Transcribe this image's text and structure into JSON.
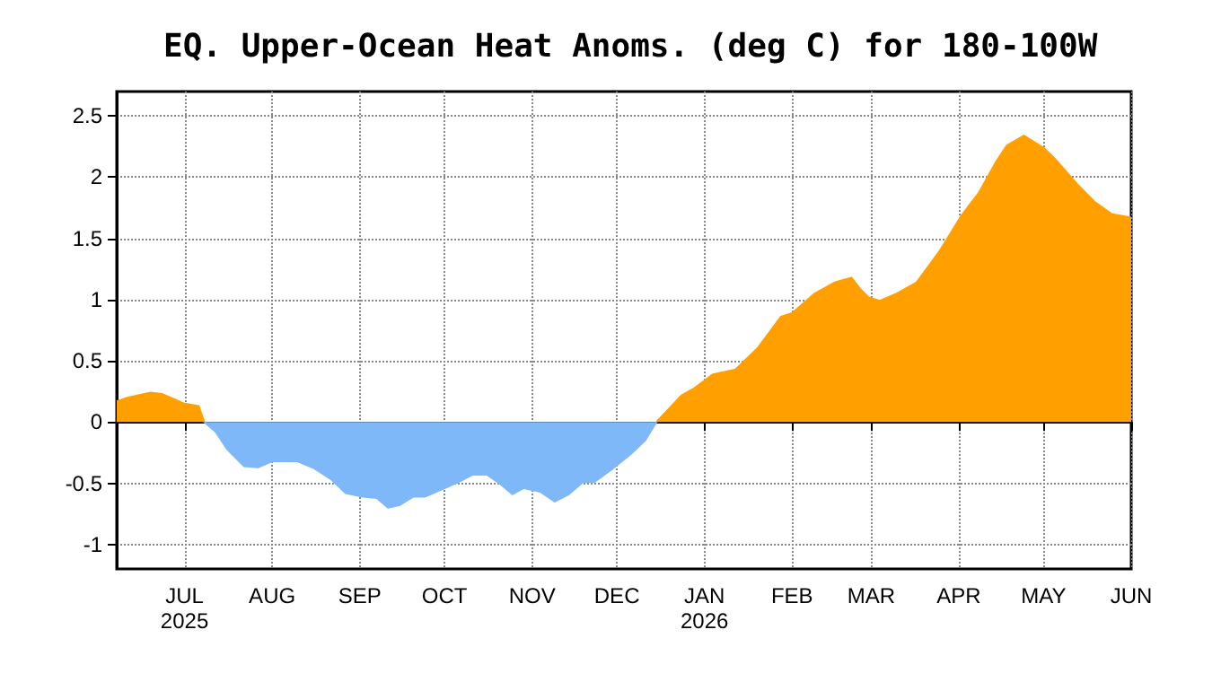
{
  "chart_data": {
    "type": "area",
    "title": "EQ. Upper-Ocean Heat Anoms. (deg C) for 180-100W",
    "x": [
      "2025-06-07",
      "2025-06-11",
      "2025-06-19",
      "2025-06-23",
      "2025-07-01",
      "2025-07-06",
      "2025-07-08",
      "2025-07-12",
      "2025-07-16",
      "2025-07-22",
      "2025-07-27",
      "2025-08-01",
      "2025-08-10",
      "2025-08-16",
      "2025-08-22",
      "2025-08-27",
      "2025-09-02",
      "2025-09-07",
      "2025-09-11",
      "2025-09-15",
      "2025-09-20",
      "2025-09-24",
      "2025-10-01",
      "2025-10-06",
      "2025-10-11",
      "2025-10-16",
      "2025-10-21",
      "2025-10-25",
      "2025-10-29",
      "2025-11-04",
      "2025-11-09",
      "2025-11-14",
      "2025-11-19",
      "2025-11-23",
      "2025-11-29",
      "2025-12-06",
      "2025-12-11",
      "2025-12-15",
      "2025-12-24",
      "2025-12-28",
      "2026-01-04",
      "2026-01-12",
      "2026-01-20",
      "2026-01-28",
      "2026-02-01",
      "2026-02-09",
      "2026-02-16",
      "2026-02-22",
      "2026-02-25",
      "2026-02-28",
      "2026-03-04",
      "2026-03-10",
      "2026-03-17",
      "2026-03-25",
      "2026-04-02",
      "2026-04-08",
      "2026-04-14",
      "2026-04-18",
      "2026-04-24",
      "2026-05-01",
      "2026-05-05",
      "2026-05-13",
      "2026-05-19",
      "2026-05-25",
      "2026-06-01"
    ],
    "series": [
      {
        "color": "#ffa000",
        "values": [
          0.17,
          0.2,
          0.24,
          0.23,
          0.15,
          0.13,
          0,
          null,
          null,
          null,
          null,
          null,
          null,
          null,
          null,
          null,
          null,
          null,
          null,
          null,
          null,
          null,
          null,
          null,
          null,
          null,
          null,
          null,
          null,
          null,
          null,
          null,
          null,
          null,
          null,
          null,
          null,
          0,
          0.22,
          0.27,
          0.39,
          0.43,
          0.61,
          0.86,
          0.89,
          1.05,
          1.14,
          1.18,
          1.09,
          1.02,
          0.99,
          1.05,
          1.14,
          1.39,
          1.69,
          1.87,
          2.12,
          2.26,
          2.34,
          2.24,
          2.15,
          1.94,
          1.8,
          1.7,
          1.67
        ]
      },
      {
        "color": "#7fb8f8",
        "values": [
          null,
          null,
          null,
          null,
          null,
          null,
          0,
          -0.08,
          -0.22,
          -0.36,
          -0.37,
          -0.32,
          -0.32,
          -0.38,
          -0.47,
          -0.58,
          -0.61,
          -0.62,
          -0.7,
          -0.68,
          -0.61,
          -0.61,
          -0.54,
          -0.49,
          -0.43,
          -0.43,
          -0.51,
          -0.59,
          -0.54,
          -0.57,
          -0.65,
          -0.59,
          -0.49,
          -0.49,
          -0.39,
          -0.26,
          -0.15,
          0,
          null,
          null,
          null,
          null,
          null,
          null,
          null,
          null,
          null,
          null,
          null,
          null,
          null,
          null,
          null,
          null,
          null,
          null,
          null,
          null,
          null,
          null,
          null,
          null,
          null,
          null,
          null
        ]
      }
    ],
    "xlim": [
      "2025-06-07",
      "2026-06-01"
    ],
    "xticks": [
      {
        "value": "2025-07-01",
        "label": "JUL\n2025"
      },
      {
        "value": "2025-08-01",
        "label": "AUG"
      },
      {
        "value": "2025-09-01",
        "label": "SEP"
      },
      {
        "value": "2025-10-01",
        "label": "OCT"
      },
      {
        "value": "2025-11-01",
        "label": "NOV"
      },
      {
        "value": "2025-12-01",
        "label": "DEC"
      },
      {
        "value": "2026-01-01",
        "label": "JAN\n2026"
      },
      {
        "value": "2026-02-01",
        "label": "FEB"
      },
      {
        "value": "2026-03-01",
        "label": "MAR"
      },
      {
        "value": "2026-04-01",
        "label": "APR"
      },
      {
        "value": "2026-05-01",
        "label": "MAY"
      },
      {
        "value": "2026-06-01",
        "label": "JUN"
      }
    ],
    "ylim": [
      -1.2,
      2.7
    ],
    "yticks": [
      -1,
      -0.5,
      0,
      0.5,
      1,
      1.5,
      2,
      2.5
    ],
    "grid": true
  }
}
